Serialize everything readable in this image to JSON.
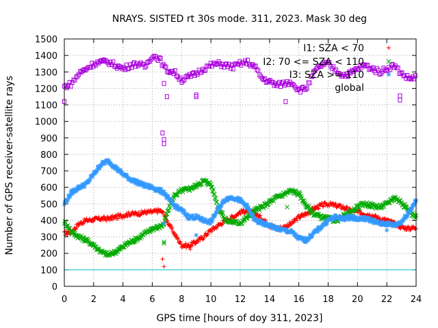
{
  "chart_data": {
    "type": "scatter",
    "title": "NRAYS. SISTED rt 30s mode. 311, 2023. Mask 30 deg",
    "xlabel": "GPS time [hours of doy 311, 2023]",
    "ylabel": "Number of GPS receiver-satellite rays",
    "xlim": [
      0,
      24
    ],
    "ylim": [
      0,
      1500
    ],
    "xticks": [
      "0",
      "2",
      "4",
      "6",
      "8",
      "10",
      "12",
      "14",
      "16",
      "18",
      "20",
      "22",
      "24"
    ],
    "yticks": [
      "0",
      "100",
      "200",
      "300",
      "400",
      "500",
      "600",
      "700",
      "800",
      "900",
      "1000",
      "1100",
      "1200",
      "1300",
      "1400",
      "1500"
    ],
    "grid": true,
    "legend_position": "top-right",
    "reference_line": {
      "y": 100,
      "color": "#00c0c0"
    },
    "series": [
      {
        "name": "I1: SZA < 70",
        "color": "#ff0000",
        "marker": "+",
        "x": [
          0,
          0.5,
          1,
          1.5,
          2,
          2.5,
          3,
          3.5,
          4,
          4.5,
          5,
          5.5,
          6,
          6.5,
          6.8,
          7,
          7.5,
          8,
          8.5,
          9,
          9.5,
          10,
          10.5,
          11,
          11.5,
          12,
          12.5,
          13,
          13.5,
          14,
          14.5,
          15,
          15.5,
          16,
          16.5,
          17,
          17.5,
          18,
          18.5,
          19,
          19.5,
          20,
          20.5,
          21,
          21.5,
          22,
          22.5,
          23,
          23.5,
          24
        ],
        "values": [
          320,
          330,
          380,
          400,
          405,
          410,
          410,
          420,
          430,
          440,
          440,
          450,
          450,
          460,
          440,
          400,
          320,
          250,
          245,
          270,
          300,
          340,
          370,
          400,
          420,
          450,
          460,
          440,
          410,
          370,
          350,
          360,
          380,
          420,
          440,
          470,
          490,
          500,
          490,
          480,
          460,
          450,
          440,
          430,
          410,
          400,
          380,
          360,
          350,
          360
        ],
        "outliers_x": [
          6.7,
          6.8,
          8.6
        ],
        "outliers_y": [
          165,
          120,
          225
        ]
      },
      {
        "name": "I2: 70 <= SZA < 110",
        "color": "#00aa00",
        "marker": "x",
        "x": [
          0,
          0.5,
          1,
          1.5,
          2,
          2.5,
          3,
          3.5,
          4,
          4.5,
          5,
          5.5,
          6,
          6.5,
          6.8,
          7,
          7.5,
          8,
          8.5,
          9,
          9.5,
          10,
          10.5,
          11,
          11.5,
          12,
          12.5,
          13,
          13.5,
          14,
          14.5,
          15,
          15.5,
          16,
          16.5,
          17,
          17.5,
          18,
          18.5,
          19,
          19.5,
          20,
          20.5,
          21,
          21.5,
          22,
          22.5,
          23,
          23.5,
          24
        ],
        "values": [
          390,
          330,
          300,
          280,
          250,
          210,
          190,
          210,
          240,
          270,
          290,
          320,
          350,
          360,
          380,
          440,
          550,
          580,
          590,
          610,
          640,
          620,
          480,
          400,
          390,
          385,
          420,
          460,
          480,
          510,
          540,
          560,
          580,
          560,
          490,
          440,
          420,
          410,
          400,
          420,
          450,
          480,
          500,
          490,
          480,
          500,
          540,
          510,
          460,
          420
        ],
        "outliers_x": [
          6.8,
          6.8,
          15.2
        ],
        "outliers_y": [
          270,
          260,
          480
        ]
      },
      {
        "name": "I3: SZA >= 110",
        "color": "#3399ff",
        "marker": "*",
        "x": [
          0,
          0.5,
          1,
          1.5,
          2,
          2.5,
          3,
          3.5,
          4,
          4.5,
          5,
          5.5,
          6,
          6.5,
          6.8,
          7,
          7.5,
          8,
          8.5,
          9,
          9.5,
          10,
          10.5,
          11,
          11.5,
          12,
          12.5,
          13,
          13.5,
          14,
          14.5,
          15,
          15.5,
          16,
          16.5,
          17,
          17.5,
          18,
          18.5,
          19,
          19.5,
          20,
          20.5,
          21,
          21.5,
          22,
          22.5,
          23,
          23.5,
          24
        ],
        "values": [
          500,
          570,
          600,
          620,
          680,
          740,
          760,
          720,
          680,
          650,
          630,
          610,
          600,
          580,
          570,
          540,
          490,
          460,
          420,
          420,
          400,
          390,
          470,
          530,
          540,
          520,
          480,
          400,
          380,
          370,
          350,
          340,
          330,
          290,
          280,
          320,
          360,
          400,
          420,
          410,
          420,
          410,
          410,
          400,
          380,
          380,
          370,
          390,
          450,
          520
        ],
        "outliers_x": [
          6.8,
          9.0,
          22.0
        ],
        "outliers_y": [
          380,
          310,
          340
        ]
      },
      {
        "name": "global",
        "color": "#aa00dd",
        "marker": "square",
        "x": [
          0,
          0.5,
          1,
          1.5,
          2,
          2.5,
          3,
          3.5,
          4,
          4.5,
          5,
          5.5,
          6,
          6.5,
          6.8,
          7,
          7.5,
          8,
          8.5,
          9,
          9.5,
          10,
          10.5,
          11,
          11.5,
          12,
          12.5,
          13,
          13.5,
          14,
          14.5,
          15,
          15.5,
          16,
          16.5,
          17,
          17.5,
          18,
          18.5,
          19,
          19.5,
          20,
          20.5,
          21,
          21.5,
          22,
          22.5,
          23,
          23.5,
          24
        ],
        "values": [
          1210,
          1230,
          1290,
          1320,
          1350,
          1360,
          1360,
          1340,
          1320,
          1340,
          1350,
          1330,
          1400,
          1380,
          1330,
          1310,
          1300,
          1250,
          1270,
          1290,
          1320,
          1340,
          1350,
          1340,
          1330,
          1350,
          1360,
          1330,
          1260,
          1240,
          1220,
          1230,
          1240,
          1190,
          1200,
          1290,
          1340,
          1350,
          1310,
          1280,
          1290,
          1320,
          1340,
          1320,
          1300,
          1320,
          1340,
          1290,
          1260,
          1270
        ],
        "outliers_x": [
          0,
          6.7,
          6.8,
          6.8,
          6.8,
          7.0,
          9.0,
          9.0,
          15.1,
          22.9,
          22.9
        ],
        "outliers_y": [
          1120,
          930,
          890,
          865,
          1230,
          1150,
          1160,
          1150,
          1120,
          1155,
          1130
        ]
      }
    ]
  }
}
